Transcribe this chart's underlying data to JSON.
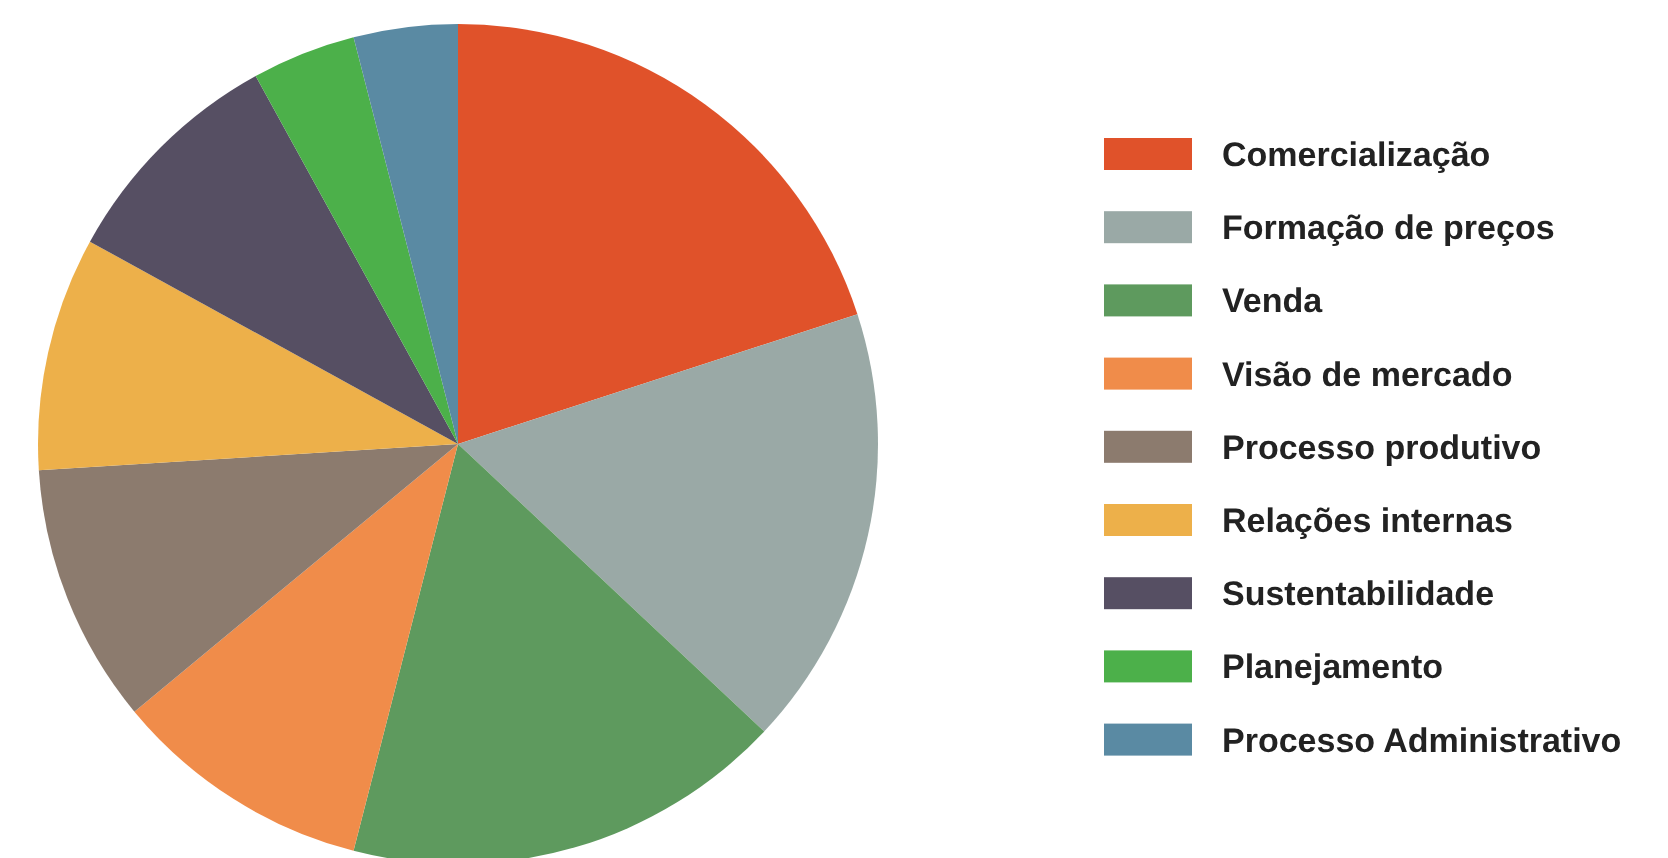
{
  "chart_data": {
    "type": "pie",
    "categories": [
      "Comercialização",
      "Formação de preços",
      "Venda",
      "Visão de mercado",
      "Processo produtivo",
      "Relações internas",
      "Sustentabilidade",
      "Planejamento",
      "Processo Administrativo"
    ],
    "values": [
      20,
      17,
      17,
      10,
      10,
      9,
      9,
      4,
      4
    ],
    "colors": [
      "#e0522a",
      "#9aa9a6",
      "#5e9a5e",
      "#f08c4a",
      "#8c7b6e",
      "#edb04a",
      "#564f63",
      "#4cb04a",
      "#5a8aa3"
    ],
    "legend": "right"
  }
}
